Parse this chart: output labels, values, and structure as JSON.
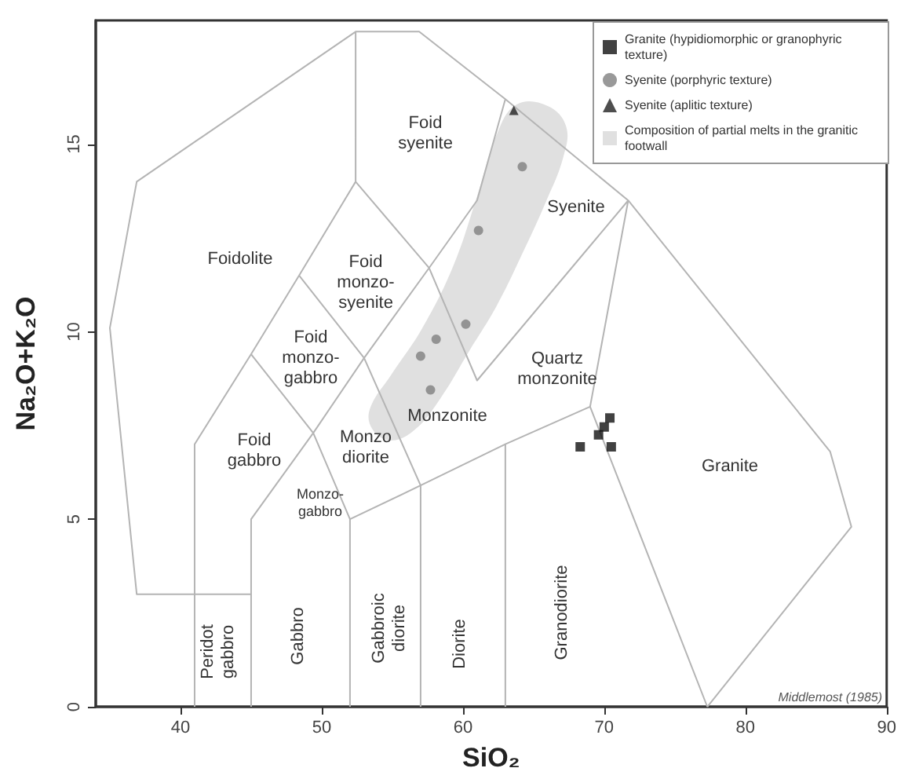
{
  "chart_data": {
    "type": "scatter",
    "xlabel": "SiO₂",
    "ylabel": "Na₂O+K₂O",
    "xlim": [
      34,
      90
    ],
    "ylim": [
      0,
      18.3
    ],
    "xticks": [
      40,
      50,
      60,
      70,
      80,
      90
    ],
    "yticks": [
      0,
      5,
      10,
      15
    ],
    "grid": false,
    "legend": "top right",
    "series": [
      {
        "type": "line",
        "color": "#b4b4b4",
        "marker": "none",
        "x": [
          77.3,
          87.5,
          86,
          71.7,
          63,
          56.9,
          52.4,
          36.9,
          35,
          36.9,
          45,
          null,
          41,
          41,
          45,
          48.4,
          52.4,
          52.4,
          null,
          45,
          45,
          49.4,
          53,
          57.6,
          61,
          63,
          null,
          52,
          52,
          57,
          63,
          69,
          71.7,
          null,
          45,
          49.4,
          52,
          null,
          48.4,
          53,
          57,
          57,
          null,
          52.4,
          57.6,
          61,
          71.7,
          null,
          63,
          63,
          null,
          69,
          77.3
        ],
        "values": [
          0,
          4.8,
          6.8,
          13.5,
          16.2,
          18,
          18,
          14,
          10.1,
          3,
          3,
          null,
          0,
          7,
          9.4,
          11.5,
          14,
          18,
          null,
          0,
          5,
          7.3,
          9.3,
          11.7,
          13.5,
          16.2,
          null,
          0,
          5,
          5.9,
          7,
          8,
          13.5,
          null,
          9.4,
          7.3,
          5,
          null,
          11.5,
          9.3,
          5.9,
          0,
          null,
          14,
          11.7,
          8.7,
          13.5,
          null,
          0,
          7,
          null,
          8,
          0
        ]
      },
      {
        "name": "Granite (hypidiomorphic or granophyric texture)",
        "color": "#111111",
        "marker": "square",
        "x": [
          68.3,
          70.5,
          69.6,
          70.0,
          70.4
        ],
        "values": [
          6.93,
          6.93,
          7.25,
          7.46,
          7.7
        ]
      },
      {
        "name": "Syenite (porphyric texture)",
        "color": "#7f7f7f",
        "marker": "circle",
        "x": [
          57.0,
          57.7,
          58.1,
          60.2,
          61.1,
          64.2
        ],
        "values": [
          9.35,
          8.45,
          9.8,
          10.2,
          12.7,
          14.4
        ]
      },
      {
        "name": "Syenite (aplitic texture)",
        "color": "#222222",
        "marker": "triangle",
        "x": [
          63.6
        ],
        "values": [
          15.9
        ]
      },
      {
        "type": "area",
        "name": "Composition of partial melts in the granitic footwall",
        "color": "#e0e0e0",
        "x": [
          63.8,
          66.0,
          67.3,
          67.1,
          65.8,
          64.3,
          62.4,
          60.4,
          58.4,
          56.6,
          54.9,
          53.6,
          53.4,
          54.9,
          57.1,
          59.3,
          61.0,
          62.4
        ],
        "values": [
          16.06,
          16.02,
          15.48,
          14.65,
          13.4,
          12.16,
          10.7,
          9.46,
          8.22,
          7.39,
          7.1,
          7.39,
          7.93,
          8.84,
          10.08,
          11.74,
          13.61,
          15.27
        ]
      }
    ],
    "annotations": [
      "Foidolite",
      "Foid\nsyenite",
      "Foid\nmonzo-\nsyenite",
      "Foid\nmonzo-\ngabbro",
      "Foid\ngabbro",
      "Monzo\ndiorite",
      "Monzo-\ngabbro",
      "Monzonite",
      "Syenite",
      "Quartz\nmonzonite",
      "Granite",
      "Peridot\ngabbro",
      "Gabbro",
      "Gabbroic\ndiorite",
      "Diorite",
      "Granodiorite",
      "Middlemost (1985)"
    ]
  }
}
